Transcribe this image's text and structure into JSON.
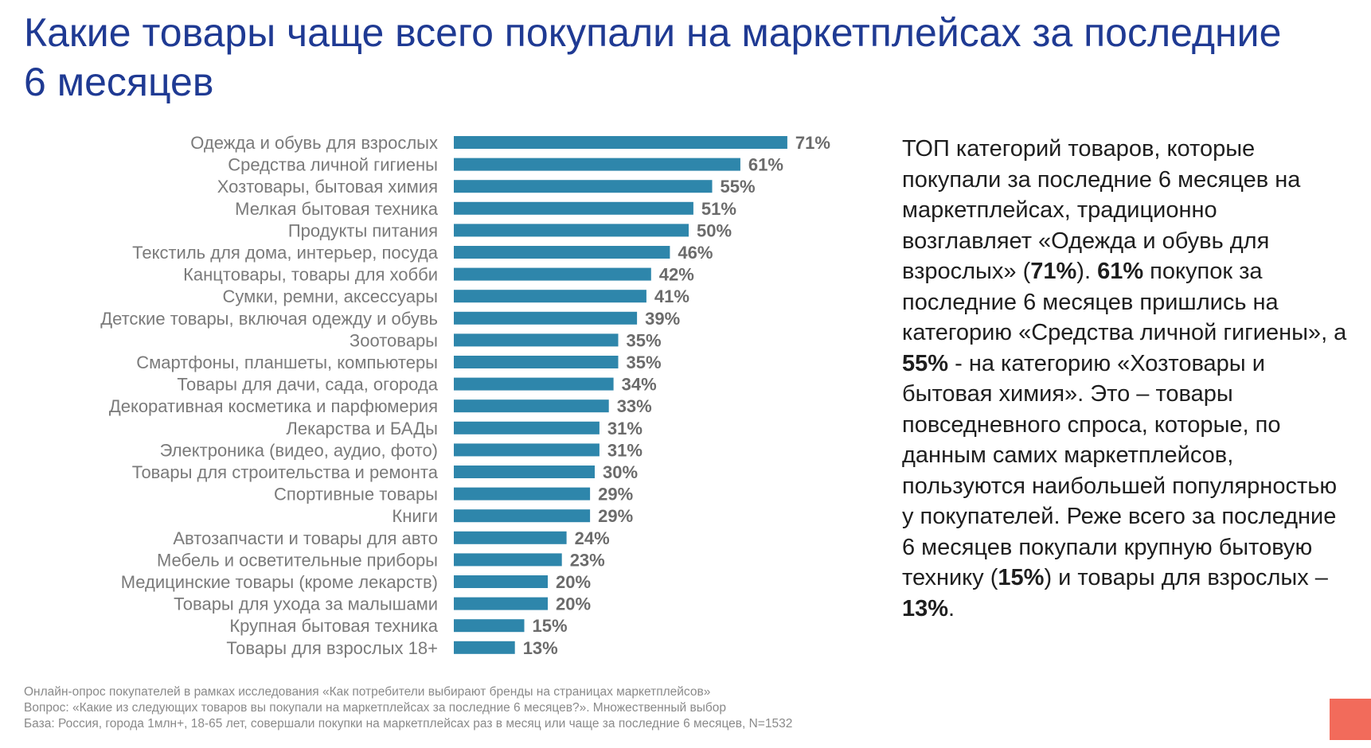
{
  "title": "Какие товары чаще всего покупали на маркетплейсах за последние 6 месяцев",
  "chart_data": {
    "type": "bar",
    "orientation": "horizontal",
    "categories": [
      "Одежда и обувь для взрослых",
      "Средства личной гигиены",
      "Хозтовары, бытовая химия",
      "Мелкая бытовая техника",
      "Продукты питания",
      "Текстиль для дома, интерьер, посуда",
      "Канцтовары, товары для хобби",
      "Сумки, ремни, аксессуары",
      "Детские товары, включая одежду и обувь",
      "Зоотовары",
      "Смартфоны, планшеты, компьютеры",
      "Товары для дачи, сада, огорода",
      "Декоративная косметика и парфюмерия",
      "Лекарства и БАДы",
      "Электроника (видео, аудио, фото)",
      "Товары для строительства и ремонта",
      "Спортивные товары",
      "Книги",
      "Автозапчасти и товары для авто",
      "Мебель и осветительные приборы",
      "Медицинские товары (кроме лекарств)",
      "Товары для ухода за малышами",
      "Крупная бытовая техника",
      "Товары для взрослых 18+"
    ],
    "values": [
      71,
      61,
      55,
      51,
      50,
      46,
      42,
      41,
      39,
      35,
      35,
      34,
      33,
      31,
      31,
      30,
      29,
      29,
      24,
      23,
      20,
      20,
      15,
      13
    ],
    "value_labels": [
      "71%",
      "61%",
      "55%",
      "51%",
      "50%",
      "46%",
      "42%",
      "41%",
      "39%",
      "35%",
      "35%",
      "34%",
      "33%",
      "31%",
      "31%",
      "30%",
      "29%",
      "29%",
      "24%",
      "23%",
      "20%",
      "20%",
      "15%",
      "13%"
    ],
    "unit": "%",
    "title": "",
    "xlabel": "",
    "ylabel": "",
    "xlim": [
      0,
      100
    ],
    "grid": false,
    "legend": "none",
    "bar_color": "#2e86ab"
  },
  "sidebar": {
    "segments": [
      {
        "text": "ТОП категорий товаров, которые покупали за последние 6 месяцев на маркетплейсах, традиционно возглавляет «Одежда и обувь для взрослых» (",
        "bold": false
      },
      {
        "text": "71%",
        "bold": true
      },
      {
        "text": "). ",
        "bold": false
      },
      {
        "text": "61%",
        "bold": true
      },
      {
        "text": " покупок за последние 6 месяцев пришлись на категорию «Средства личной гигиены», а ",
        "bold": false
      },
      {
        "text": "55%",
        "bold": true
      },
      {
        "text": " - на категорию «Хозтовары и бытовая химия». Это – товары повседневного спроса, которые, по данным самих маркетплейсов, пользуются наибольшей популярностью у покупателей. Реже всего за последние 6 месяцев покупали крупную бытовую технику (",
        "bold": false
      },
      {
        "text": "15%",
        "bold": true
      },
      {
        "text": ") и товары для взрослых – ",
        "bold": false
      },
      {
        "text": "13%",
        "bold": true
      },
      {
        "text": ".",
        "bold": false
      }
    ]
  },
  "footnotes": {
    "line1": "Онлайн-опрос покупателей в рамках исследования «Как потребители выбирают бренды на страницах маркетплейсов»",
    "line2": "Вопрос: «Какие из следующих товаров вы покупали на маркетплейсах за последние 6 месяцев?». Множественный выбор",
    "line3": "База: Россия, города 1млн+, 18-65 лет, совершали покупки на маркетплейсах раз в месяц или чаще за последние 6 месяцев, N=1532"
  },
  "colors": {
    "title": "#1f3a93",
    "bar": "#2e86ab",
    "corner_accent": "#f26b5b"
  }
}
